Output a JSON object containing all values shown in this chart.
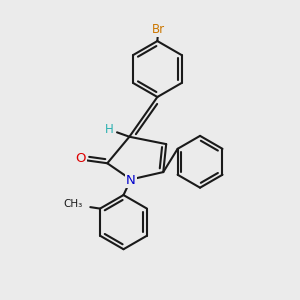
{
  "bg_color": "#ebebeb",
  "bond_color": "#1a1a1a",
  "bond_width": 1.5,
  "atom_labels": {
    "Br": {
      "color": "#cc7700",
      "fontsize": 8.5
    },
    "H": {
      "color": "#2ab0b0",
      "fontsize": 8.5
    },
    "O": {
      "color": "#dd0000",
      "fontsize": 9.5
    },
    "N": {
      "color": "#0000cc",
      "fontsize": 9.5
    }
  },
  "fig_bg": "#ebebeb"
}
